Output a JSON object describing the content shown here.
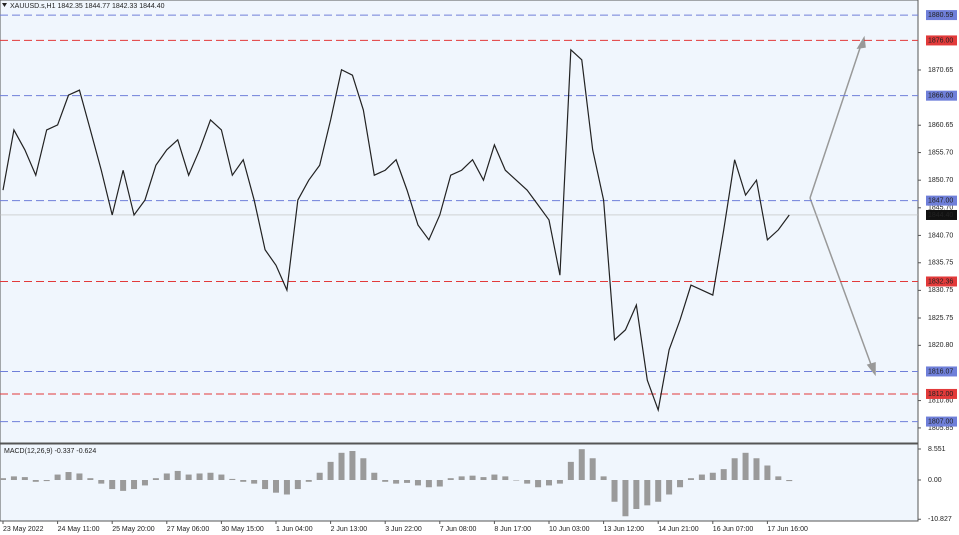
{
  "chart_data": {
    "type": "line",
    "title": "XAUUSD.s,H1  1842.35 1844.77 1842.33 1844.40",
    "categories": [
      "23 May 2022",
      null,
      null,
      null,
      null,
      "24 May 11:00",
      null,
      null,
      null,
      null,
      "25 May 20:00",
      null,
      null,
      null,
      null,
      "27 May 06:00",
      null,
      null,
      null,
      null,
      "30 May 15:00",
      null,
      null,
      null,
      null,
      "1 Jun 04:00",
      null,
      null,
      null,
      null,
      "2 Jun 13:00",
      null,
      null,
      null,
      null,
      "3 Jun 22:00",
      null,
      null,
      null,
      null,
      "7 Jun 08:00",
      null,
      null,
      null,
      null,
      "8 Jun 17:00",
      null,
      null,
      null,
      null,
      "10 Jun 03:00",
      null,
      null,
      null,
      null,
      "13 Jun 12:00",
      null,
      null,
      null,
      null,
      "14 Jun 21:00",
      null,
      null,
      null,
      null,
      "16 Jun 07:00",
      null,
      null,
      null,
      null,
      "17 Jun 16:00",
      null,
      null
    ],
    "series": [
      {
        "color": "#222222",
        "values": [
          1848.9,
          1859.8,
          1856.2,
          1851.6,
          1859.8,
          1860.7,
          1866.1,
          1867.0,
          1859.8,
          1852.5,
          1844.4,
          1852.5,
          1844.4,
          1847.1,
          1853.4,
          1856.2,
          1858.0,
          1851.6,
          1856.2,
          1861.6,
          1859.8,
          1851.6,
          1854.4,
          1847.1,
          1838.1,
          1835.3,
          1830.8,
          1847.1,
          1850.7,
          1853.4,
          1861.6,
          1870.7,
          1869.7,
          1863.4,
          1851.6,
          1852.5,
          1854.4,
          1848.9,
          1842.6,
          1839.9,
          1844.4,
          1851.6,
          1852.5,
          1854.4,
          1850.7,
          1857.1,
          1852.5,
          1850.7,
          1848.9,
          1846.2,
          1843.5,
          1833.5,
          1874.3,
          1872.5,
          1856.2,
          1847.1,
          1821.8,
          1823.6,
          1828.1,
          1814.5,
          1809.1,
          1820.0,
          1825.4,
          1831.7,
          1830.8,
          1829.9,
          1841.7,
          1854.4,
          1848.0,
          1850.7,
          1839.9,
          1841.7,
          1844.4
        ]
      }
    ],
    "ylim": [
      1803.12,
      1883.32
    ],
    "yticks": [
      1870.65,
      1860.65,
      {
        "value": 1855.7,
        "label": "1855.70"
      },
      {
        "value": 1850.7,
        "label": "1850.70"
      },
      {
        "value": 1845.7,
        "label": "1845.70"
      },
      {
        "value": 1840.7,
        "label": "1840.70"
      },
      1835.75,
      1830.75,
      1825.75,
      {
        "value": 1820.8,
        "label": "1820.80"
      },
      {
        "value": 1810.8,
        "label": "1810.80"
      },
      1805.85
    ],
    "levels": [
      {
        "value": 1880.59,
        "color": "#6f7fd9"
      },
      {
        "value": 1876,
        "label": "1876.00",
        "color": "#e23a3a"
      },
      {
        "value": 1866,
        "label": "1866.00",
        "color": "#6f7fd9"
      },
      {
        "value": 1847,
        "label": "1847.00",
        "color": "#6f7fd9"
      },
      {
        "value": 1832.36,
        "color": "#e23a3a"
      },
      {
        "value": 1816.07,
        "color": "#6f7fd9"
      },
      {
        "value": 1812,
        "label": "1812.00",
        "color": "#e23a3a"
      },
      {
        "value": 1807,
        "label": "1807.00",
        "color": "#6f7fd9"
      }
    ],
    "last": {
      "value": 1844.4,
      "label": "1844.40"
    },
    "macd": {
      "title": "MACD(12,26,9) -0.337 -0.624",
      "color": "#9a9a9a",
      "ylim": [
        -11.31,
        9.93
      ],
      "yticks": [
        8.551,
        {
          "value": 0,
          "label": "0.00"
        },
        -10.827
      ],
      "values": [
        0.5,
        1,
        0.8,
        -0.5,
        -0.3,
        1.5,
        2.2,
        1.8,
        0.5,
        -1,
        -2.5,
        -3,
        -2.5,
        -1.5,
        0.5,
        1.8,
        2.5,
        1.5,
        1.8,
        2,
        1.5,
        0.3,
        -0.5,
        -1,
        -2.5,
        -3.5,
        -4,
        -2.5,
        -0.5,
        2,
        5,
        7.5,
        8,
        6,
        2,
        -0.5,
        -1,
        -0.8,
        -1.5,
        -2,
        -1.8,
        0.5,
        1,
        1.2,
        0.8,
        1.5,
        1,
        0,
        -1,
        -2,
        -1.5,
        -1,
        5,
        8.5,
        6,
        1,
        -6,
        -10,
        -8,
        -7,
        -6,
        -4,
        -2,
        0.5,
        1.5,
        2,
        3,
        6,
        7.5,
        6,
        4,
        1,
        -0.3
      ]
    }
  }
}
